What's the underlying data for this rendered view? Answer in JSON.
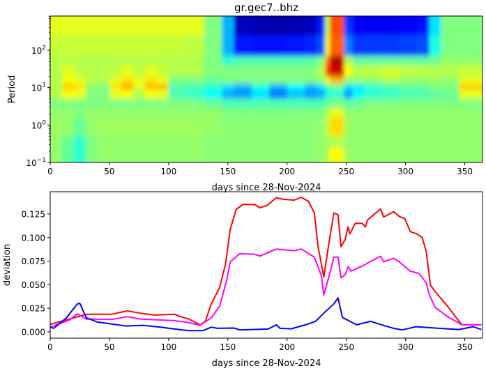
{
  "chart_data": [
    {
      "type": "heatmap",
      "title": "gr.gec7..bhz",
      "xlabel": "days since 28-Nov-2024",
      "ylabel": "Period",
      "xlim": [
        0,
        365
      ],
      "ylim": [
        0.1,
        815
      ],
      "yscale": "log",
      "colormap": "jet",
      "x_ticks": [
        0,
        50,
        100,
        150,
        200,
        250,
        300,
        350
      ],
      "y_ticks": [
        {
          "value": 0.1,
          "base": "10",
          "exp": "−1"
        },
        {
          "value": 1,
          "base": "10",
          "exp": "0"
        },
        {
          "value": 10,
          "base": "10",
          "exp": "1"
        },
        {
          "value": 100,
          "base": "10",
          "exp": "2"
        }
      ],
      "x_edges": [
        0,
        10,
        20,
        30,
        40,
        50,
        60,
        70,
        80,
        90,
        100,
        115,
        130,
        145,
        155,
        170,
        185,
        200,
        215,
        225,
        232,
        236,
        248,
        255,
        265,
        280,
        295,
        310,
        320,
        330,
        345,
        365
      ],
      "period_edges": [
        815,
        250,
        70,
        40,
        20,
        12.6,
        8.9,
        5,
        2.8,
        1.6,
        0.5,
        0.25,
        0.1
      ],
      "values": [
        [
          0.6,
          0.6,
          0.6,
          0.6,
          0.6,
          0.6,
          0.6,
          0.6,
          0.6,
          0.6,
          0.6,
          0.6,
          0.5,
          0.3,
          0.06,
          0.05,
          0.04,
          0.05,
          0.06,
          0.15,
          0.55,
          0.8,
          0.18,
          0.12,
          0.12,
          0.12,
          0.13,
          0.14,
          0.35,
          0.5,
          0.5
        ],
        [
          0.57,
          0.57,
          0.57,
          0.57,
          0.57,
          0.57,
          0.57,
          0.57,
          0.57,
          0.57,
          0.57,
          0.56,
          0.5,
          0.3,
          0.15,
          0.14,
          0.14,
          0.15,
          0.16,
          0.2,
          0.6,
          0.78,
          0.25,
          0.18,
          0.18,
          0.18,
          0.19,
          0.2,
          0.4,
          0.5,
          0.5
        ],
        [
          0.55,
          0.55,
          0.55,
          0.55,
          0.55,
          0.55,
          0.55,
          0.55,
          0.55,
          0.55,
          0.55,
          0.55,
          0.5,
          0.42,
          0.45,
          0.45,
          0.45,
          0.45,
          0.46,
          0.5,
          0.75,
          0.95,
          0.55,
          0.47,
          0.47,
          0.47,
          0.47,
          0.47,
          0.48,
          0.52,
          0.52
        ],
        [
          0.55,
          0.6,
          0.56,
          0.55,
          0.55,
          0.56,
          0.6,
          0.56,
          0.6,
          0.57,
          0.55,
          0.55,
          0.5,
          0.5,
          0.5,
          0.5,
          0.5,
          0.5,
          0.5,
          0.55,
          0.8,
          0.92,
          0.62,
          0.55,
          0.56,
          0.58,
          0.56,
          0.56,
          0.55,
          0.55,
          0.57
        ],
        [
          0.55,
          0.62,
          0.6,
          0.55,
          0.55,
          0.6,
          0.65,
          0.6,
          0.65,
          0.6,
          0.5,
          0.5,
          0.48,
          0.5,
          0.5,
          0.5,
          0.5,
          0.5,
          0.5,
          0.52,
          0.6,
          0.7,
          0.52,
          0.52,
          0.52,
          0.55,
          0.52,
          0.52,
          0.53,
          0.52,
          0.6
        ],
        [
          0.55,
          0.68,
          0.65,
          0.52,
          0.5,
          0.65,
          0.72,
          0.6,
          0.7,
          0.7,
          0.45,
          0.45,
          0.42,
          0.35,
          0.3,
          0.4,
          0.3,
          0.38,
          0.3,
          0.35,
          0.45,
          0.48,
          0.35,
          0.35,
          0.42,
          0.45,
          0.48,
          0.48,
          0.5,
          0.5,
          0.68
        ],
        [
          0.55,
          0.62,
          0.6,
          0.5,
          0.5,
          0.6,
          0.62,
          0.55,
          0.62,
          0.6,
          0.45,
          0.43,
          0.38,
          0.3,
          0.28,
          0.35,
          0.25,
          0.32,
          0.28,
          0.3,
          0.4,
          0.42,
          0.28,
          0.38,
          0.42,
          0.43,
          0.45,
          0.45,
          0.47,
          0.48,
          0.6
        ],
        [
          0.5,
          0.5,
          0.5,
          0.5,
          0.5,
          0.5,
          0.5,
          0.5,
          0.5,
          0.5,
          0.5,
          0.5,
          0.48,
          0.45,
          0.45,
          0.45,
          0.45,
          0.45,
          0.45,
          0.45,
          0.48,
          0.5,
          0.47,
          0.48,
          0.5,
          0.5,
          0.5,
          0.5,
          0.5,
          0.5,
          0.5
        ],
        [
          0.52,
          0.52,
          0.5,
          0.52,
          0.52,
          0.52,
          0.52,
          0.52,
          0.52,
          0.52,
          0.52,
          0.52,
          0.52,
          0.5,
          0.5,
          0.5,
          0.5,
          0.5,
          0.5,
          0.5,
          0.55,
          0.6,
          0.52,
          0.52,
          0.52,
          0.52,
          0.52,
          0.52,
          0.52,
          0.52,
          0.52
        ],
        [
          0.53,
          0.52,
          0.48,
          0.52,
          0.53,
          0.53,
          0.53,
          0.53,
          0.53,
          0.53,
          0.53,
          0.53,
          0.52,
          0.51,
          0.51,
          0.51,
          0.51,
          0.51,
          0.51,
          0.52,
          0.56,
          0.66,
          0.53,
          0.52,
          0.52,
          0.52,
          0.52,
          0.52,
          0.52,
          0.52,
          0.52
        ],
        [
          0.52,
          0.48,
          0.42,
          0.5,
          0.52,
          0.52,
          0.52,
          0.52,
          0.52,
          0.52,
          0.52,
          0.52,
          0.51,
          0.51,
          0.51,
          0.51,
          0.51,
          0.51,
          0.51,
          0.52,
          0.53,
          0.55,
          0.52,
          0.52,
          0.52,
          0.52,
          0.52,
          0.52,
          0.52,
          0.52,
          0.52
        ],
        [
          0.52,
          0.47,
          0.42,
          0.5,
          0.52,
          0.52,
          0.52,
          0.52,
          0.52,
          0.52,
          0.52,
          0.52,
          0.51,
          0.51,
          0.51,
          0.51,
          0.51,
          0.51,
          0.51,
          0.52,
          0.55,
          0.62,
          0.53,
          0.52,
          0.52,
          0.52,
          0.52,
          0.52,
          0.52,
          0.52,
          0.52
        ]
      ]
    },
    {
      "type": "line",
      "xlabel": "days since 28-Nov-2024",
      "ylabel": "deviation",
      "xlim": [
        0,
        365
      ],
      "ylim": [
        -0.0067,
        0.1487
      ],
      "x_ticks": [
        0,
        50,
        100,
        150,
        200,
        250,
        300,
        350
      ],
      "y_ticks": [
        "0.000",
        "0.025",
        "0.050",
        "0.075",
        "0.100",
        "0.125"
      ],
      "series": [
        {
          "color": "#ff0000",
          "x": [
            0,
            30.5,
            52,
            65,
            76,
            88,
            105,
            110,
            117,
            126.6,
            131,
            136,
            143,
            148,
            152,
            157,
            163,
            173,
            177,
            183,
            191,
            197,
            206,
            212,
            218,
            223,
            226,
            231,
            235,
            239.5,
            243,
            245.5,
            249,
            251.5,
            253,
            257.5,
            263.5,
            266,
            268,
            279,
            281.5,
            290,
            294.7,
            299.5,
            304,
            309.6,
            314,
            317.5,
            321,
            327,
            335.5,
            342.8,
            347.6,
            364
          ],
          "y": [
            0.0079,
            0.0186,
            0.0186,
            0.0223,
            0.0198,
            0.0178,
            0.0186,
            0.0161,
            0.0136,
            0.0074,
            0.0111,
            0.0297,
            0.047,
            0.0718,
            0.1089,
            0.13,
            0.1354,
            0.1349,
            0.1317,
            0.1341,
            0.1423,
            0.1406,
            0.1398,
            0.1428,
            0.1386,
            0.1262,
            0.0916,
            0.0582,
            0.0916,
            0.1262,
            0.1242,
            0.0903,
            0.0978,
            0.1114,
            0.104,
            0.1151,
            0.1151,
            0.1114,
            0.1188,
            0.1304,
            0.1218,
            0.1275,
            0.1225,
            0.12,
            0.1064,
            0.104,
            0.1002,
            0.0854,
            0.0495,
            0.0396,
            0.0272,
            0.0149,
            0.0074,
            0.0074
          ]
        },
        {
          "color": "#ff00ff",
          "x": [
            0,
            16,
            23,
            30.5,
            52,
            65,
            76,
            105,
            117,
            126.6,
            136,
            143,
            149,
            152,
            160,
            172,
            177,
            191,
            206,
            212,
            223,
            229,
            231,
            236,
            239.5,
            243,
            245.5,
            249,
            251.5,
            254,
            263.5,
            268,
            279,
            281.5,
            290,
            294.7,
            304,
            311.5,
            317.5,
            320,
            325,
            335.5,
            347.6,
            364
          ],
          "y": [
            0.005,
            0.0124,
            0.0191,
            0.0136,
            0.0131,
            0.0161,
            0.0136,
            0.0119,
            0.0099,
            0.0069,
            0.0149,
            0.0272,
            0.0545,
            0.0743,
            0.0829,
            0.0824,
            0.0804,
            0.0879,
            0.0861,
            0.0879,
            0.0792,
            0.0594,
            0.0391,
            0.0619,
            0.0792,
            0.0792,
            0.0574,
            0.0606,
            0.0693,
            0.0644,
            0.0698,
            0.073,
            0.0802,
            0.0743,
            0.078,
            0.0743,
            0.0644,
            0.0619,
            0.052,
            0.0396,
            0.026,
            0.0161,
            0.0074,
            0.0074
          ]
        },
        {
          "color": "#0000ff",
          "x": [
            0,
            3,
            13.7,
            23,
            25,
            30.5,
            40,
            50,
            64,
            78.5,
            93,
            105,
            117,
            129,
            136,
            141,
            155,
            160,
            184,
            191,
            194,
            203.5,
            215.5,
            224,
            231,
            239.5,
            243,
            246.7,
            258.7,
            270.7,
            280,
            290,
            297,
            309,
            328,
            345,
            357,
            364
          ],
          "y": [
            0.005,
            0.0037,
            0.0149,
            0.0297,
            0.0302,
            0.0149,
            0.0104,
            0.0087,
            0.0062,
            0.0069,
            0.005,
            0.003,
            0.0012,
            0.0012,
            0.005,
            0.0037,
            0.004,
            0.002,
            0.003,
            0.0074,
            0.0037,
            0.0032,
            0.0074,
            0.0111,
            0.0198,
            0.0297,
            0.0359,
            0.0153,
            0.0074,
            0.0111,
            0.0074,
            0.0037,
            0.002,
            0.0054,
            0.0037,
            0.0025,
            0.0054,
            0.0025
          ]
        }
      ]
    }
  ]
}
